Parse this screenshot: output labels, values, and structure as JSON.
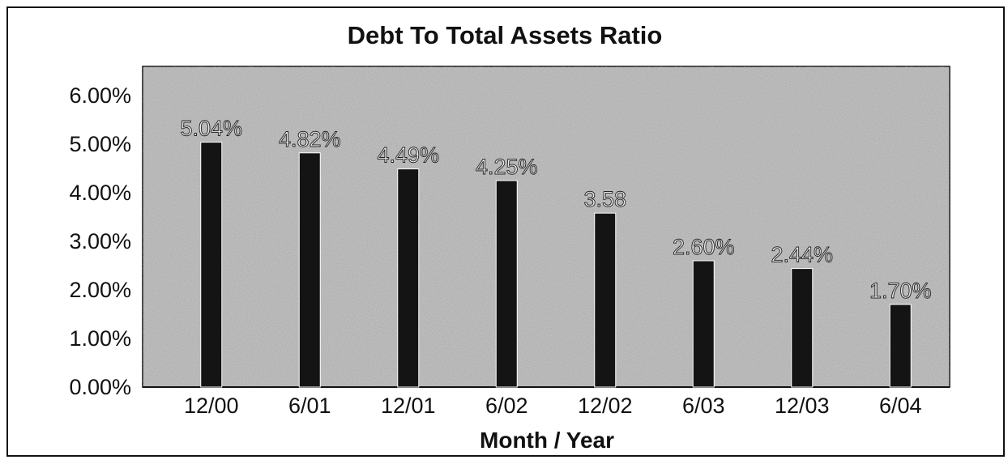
{
  "chart_data": {
    "type": "bar",
    "title": "Debt To Total Assets Ratio",
    "xlabel": "Month / Year",
    "ylabel": "",
    "categories": [
      "12/00",
      "6/01",
      "12/01",
      "6/02",
      "12/02",
      "6/03",
      "12/03",
      "6/04"
    ],
    "values": [
      5.04,
      4.82,
      4.49,
      4.25,
      3.58,
      2.6,
      2.44,
      1.7
    ],
    "data_labels": [
      "5.04%",
      "4.82%",
      "4.49%",
      "4.25%",
      "3.58",
      "2.60%",
      "2.44%",
      "1.70%"
    ],
    "y_ticks": [
      "0.00%",
      "1.00%",
      "2.00%",
      "3.00%",
      "4.00%",
      "5.00%",
      "6.00%"
    ],
    "ylim": [
      0,
      6.6
    ],
    "grid": false,
    "legend": "none",
    "colors": {
      "bar": "#141414",
      "plot_background": "#bdbdbd",
      "text": "#111111"
    }
  }
}
